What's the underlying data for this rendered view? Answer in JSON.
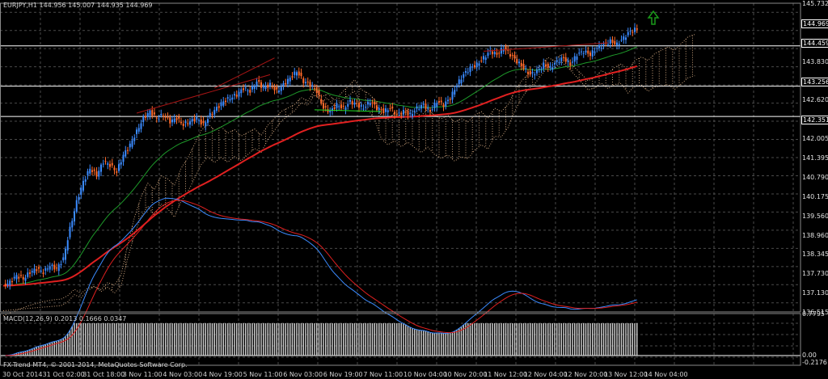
{
  "header": {
    "symbol_line": "EURJPY,H1  144.956 145.007 144.935 144.969",
    "macd_line": "MACD(12,26,9) 0.2013 0.1666 0.0347",
    "copyright": "FX-Trend MT4, © 2001-2014, MetaQuotes Software Corp."
  },
  "price_axis": [
    "145.732",
    "144.969",
    "144.459",
    "143.830",
    "143.256",
    "142.620",
    "142.351",
    "142.005",
    "141.395",
    "140.790",
    "140.175",
    "139.560",
    "138.960",
    "138.345",
    "137.730",
    "137.130",
    "136.515"
  ],
  "macd_axis": [
    "0.7795",
    "0.00",
    "-0.2176"
  ],
  "time_axis": [
    "30 Oct 2014",
    "31 Oct 02:00",
    "31 Oct 18:00",
    "3 Nov 11:00",
    "4 Nov 03:00",
    "4 Nov 19:00",
    "5 Nov 11:00",
    "6 Nov 03:00",
    "6 Nov 19:00",
    "7 Nov 11:00",
    "10 Nov 04:00",
    "10 Nov 20:00",
    "11 Nov 12:00",
    "12 Nov 04:00",
    "12 Nov 20:00",
    "13 Nov 12:00",
    "14 Nov 04:00"
  ],
  "colors": {
    "bull": "#3b8bff",
    "bear": "#ff6a2a",
    "grid": "#4a4a4a",
    "ma_fast": "#1e9a2a",
    "ma_slow": "#e02020",
    "cloud": "#c8a07a",
    "signal_up": "#22dd22",
    "signal_down": "#ff3030",
    "arrow_up": "#1a9a1a"
  },
  "icons": {
    "top_signal": "up-arrow-icon"
  },
  "chart_data": {
    "type": "candlestick",
    "symbol": "EURJPY,H1",
    "last": 144.969,
    "price_range": [
      136.515,
      145.732
    ],
    "horizontal_levels": [
      144.459,
      143.256,
      142.351
    ],
    "close_path": [
      [
        0,
        137.3
      ],
      [
        3,
        137.4
      ],
      [
        6,
        137.6
      ],
      [
        9,
        137.5
      ],
      [
        12,
        137.7
      ],
      [
        15,
        137.8
      ],
      [
        18,
        137.7
      ],
      [
        21,
        137.9
      ],
      [
        24,
        137.8
      ],
      [
        27,
        138.1
      ],
      [
        30,
        139.0
      ],
      [
        33,
        139.8
      ],
      [
        36,
        140.4
      ],
      [
        39,
        140.8
      ],
      [
        42,
        140.6
      ],
      [
        45,
        141.0
      ],
      [
        48,
        140.9
      ],
      [
        51,
        140.7
      ],
      [
        54,
        141.2
      ],
      [
        57,
        141.5
      ],
      [
        60,
        141.9
      ],
      [
        63,
        142.3
      ],
      [
        66,
        142.5
      ],
      [
        69,
        142.3
      ],
      [
        72,
        142.4
      ],
      [
        75,
        142.2
      ],
      [
        78,
        142.3
      ],
      [
        81,
        142.1
      ],
      [
        84,
        142.2
      ],
      [
        87,
        142.3
      ],
      [
        90,
        142.1
      ],
      [
        93,
        142.4
      ],
      [
        96,
        142.6
      ],
      [
        99,
        142.8
      ],
      [
        102,
        142.9
      ],
      [
        105,
        143.0
      ],
      [
        108,
        143.2
      ],
      [
        111,
        143.1
      ],
      [
        114,
        143.4
      ],
      [
        117,
        143.2
      ],
      [
        120,
        143.3
      ],
      [
        123,
        143.1
      ],
      [
        126,
        143.3
      ],
      [
        129,
        143.5
      ],
      [
        132,
        143.7
      ],
      [
        135,
        143.4
      ],
      [
        138,
        143.3
      ],
      [
        141,
        143.1
      ],
      [
        144,
        142.6
      ],
      [
        147,
        142.5
      ],
      [
        150,
        142.7
      ],
      [
        153,
        142.6
      ],
      [
        156,
        142.8
      ],
      [
        159,
        142.7
      ],
      [
        162,
        142.6
      ],
      [
        165,
        142.8
      ],
      [
        168,
        142.6
      ],
      [
        171,
        142.5
      ],
      [
        174,
        142.6
      ],
      [
        177,
        142.4
      ],
      [
        180,
        142.5
      ],
      [
        183,
        142.4
      ],
      [
        186,
        142.6
      ],
      [
        189,
        142.7
      ],
      [
        192,
        142.5
      ],
      [
        195,
        142.8
      ],
      [
        198,
        142.7
      ],
      [
        201,
        142.9
      ],
      [
        204,
        143.3
      ],
      [
        207,
        143.6
      ],
      [
        210,
        143.8
      ],
      [
        213,
        143.9
      ],
      [
        216,
        144.1
      ],
      [
        219,
        144.3
      ],
      [
        222,
        144.2
      ],
      [
        225,
        144.4
      ],
      [
        228,
        144.2
      ],
      [
        231,
        144.0
      ],
      [
        234,
        143.8
      ],
      [
        237,
        143.6
      ],
      [
        240,
        143.7
      ],
      [
        243,
        143.9
      ],
      [
        246,
        143.8
      ],
      [
        249,
        144.0
      ],
      [
        252,
        144.1
      ],
      [
        255,
        143.9
      ],
      [
        258,
        144.2
      ],
      [
        261,
        144.3
      ],
      [
        264,
        144.2
      ],
      [
        267,
        144.4
      ],
      [
        270,
        144.5
      ],
      [
        273,
        144.6
      ],
      [
        276,
        144.5
      ],
      [
        279,
        144.7
      ],
      [
        282,
        144.9
      ],
      [
        285,
        144.969
      ]
    ]
  }
}
